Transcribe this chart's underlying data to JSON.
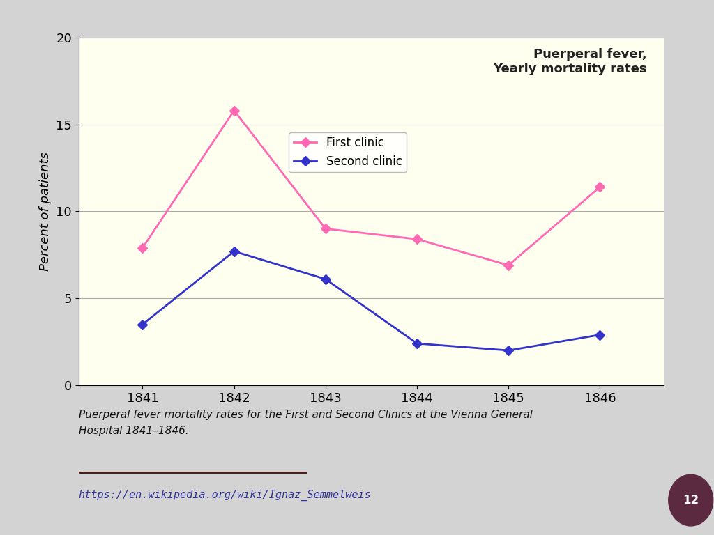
{
  "years": [
    1841,
    1842,
    1843,
    1844,
    1845,
    1846
  ],
  "first_clinic": [
    7.9,
    15.8,
    9.0,
    8.4,
    6.9,
    11.4
  ],
  "second_clinic": [
    3.5,
    7.7,
    6.1,
    2.4,
    2.0,
    2.9
  ],
  "first_clinic_color": "#FF69B4",
  "second_clinic_color": "#3333CC",
  "first_clinic_label": "First clinic",
  "second_clinic_label": "Second clinic",
  "chart_title": "Puerperal fever,\nYearly mortality rates",
  "ylabel": "Percent of patients",
  "ylim": [
    0,
    20
  ],
  "yticks": [
    0,
    5,
    10,
    15,
    20
  ],
  "plot_bg_color": "#FFFFF0",
  "figure_bg_color": "#D3D3D3",
  "caption_line1": "Puerperal fever mortality rates for the First and Second Clinics at the Vienna General",
  "caption_line2": "Hospital 1841–1846.",
  "url_text": "https://en.wikipedia.org/wiki/Ignaz_Semmelweis",
  "page_number": "12",
  "divider_color": "#4B2020",
  "marker": "D",
  "linewidth": 2.0,
  "markersize": 7
}
